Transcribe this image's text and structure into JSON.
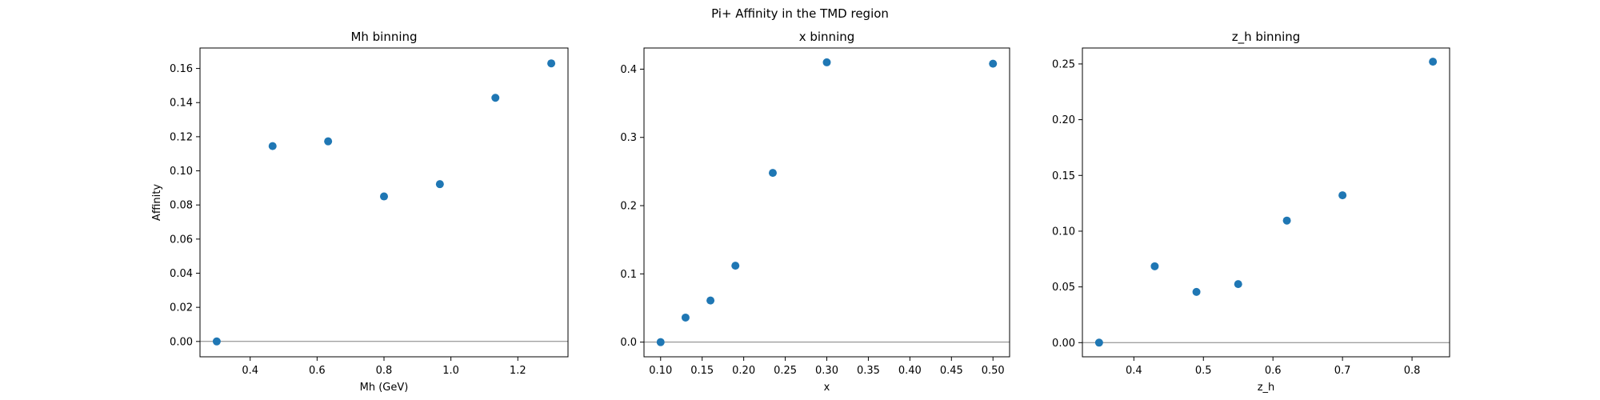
{
  "figure": {
    "suptitle": "Pi+ Affinity in the TMD region",
    "point_color": "#1f77b4",
    "zero_line_color": "#808080"
  },
  "chart_data": [
    {
      "type": "scatter",
      "title": "Mh binning",
      "xlabel": "Mh (GeV)",
      "ylabel": "Affinity",
      "x": [
        0.3,
        0.467,
        0.633,
        0.8,
        0.967,
        1.133,
        1.3
      ],
      "y": [
        0.0,
        0.1145,
        0.1173,
        0.085,
        0.0922,
        0.1428,
        0.163
      ],
      "xlim": [
        0.25,
        1.35
      ],
      "ylim": [
        -0.009,
        0.172
      ],
      "xticks": [
        0.4,
        0.6,
        0.8,
        1.0,
        1.2
      ],
      "xtick_labels": [
        "0.4",
        "0.6",
        "0.8",
        "1.0",
        "1.2"
      ],
      "yticks": [
        0.0,
        0.02,
        0.04,
        0.06,
        0.08,
        0.1,
        0.12,
        0.14,
        0.16
      ],
      "ytick_labels": [
        "0.00",
        "0.02",
        "0.04",
        "0.06",
        "0.08",
        "0.10",
        "0.12",
        "0.14",
        "0.16"
      ],
      "hline": 0,
      "grid": false
    },
    {
      "type": "scatter",
      "title": "x binning",
      "xlabel": "x",
      "ylabel": "",
      "x": [
        0.1,
        0.13,
        0.16,
        0.19,
        0.235,
        0.3,
        0.5
      ],
      "y": [
        0.0,
        0.036,
        0.061,
        0.112,
        0.248,
        0.41,
        0.408
      ],
      "xlim": [
        0.08,
        0.52
      ],
      "ylim": [
        -0.0215,
        0.431
      ],
      "xticks": [
        0.1,
        0.15,
        0.2,
        0.25,
        0.3,
        0.35,
        0.4,
        0.45,
        0.5
      ],
      "xtick_labels": [
        "0.10",
        "0.15",
        "0.20",
        "0.25",
        "0.30",
        "0.35",
        "0.40",
        "0.45",
        "0.50"
      ],
      "yticks": [
        0.0,
        0.1,
        0.2,
        0.3,
        0.4
      ],
      "ytick_labels": [
        "0.0",
        "0.1",
        "0.2",
        "0.3",
        "0.4"
      ],
      "hline": 0,
      "grid": false
    },
    {
      "type": "scatter",
      "title": "z_h binning",
      "xlabel": "z_h",
      "ylabel": "",
      "x": [
        0.35,
        0.43,
        0.49,
        0.55,
        0.62,
        0.7,
        0.83
      ],
      "y": [
        0.0,
        0.0685,
        0.0455,
        0.0525,
        0.1095,
        0.1322,
        0.252
      ],
      "xlim": [
        0.326,
        0.854
      ],
      "ylim": [
        -0.0127,
        0.2643
      ],
      "xticks": [
        0.4,
        0.5,
        0.6,
        0.7,
        0.8
      ],
      "xtick_labels": [
        "0.4",
        "0.5",
        "0.6",
        "0.7",
        "0.8"
      ],
      "yticks": [
        0.0,
        0.05,
        0.1,
        0.15,
        0.2,
        0.25
      ],
      "ytick_labels": [
        "0.00",
        "0.05",
        "0.10",
        "0.15",
        "0.20",
        "0.25"
      ],
      "hline": 0,
      "grid": false
    }
  ]
}
